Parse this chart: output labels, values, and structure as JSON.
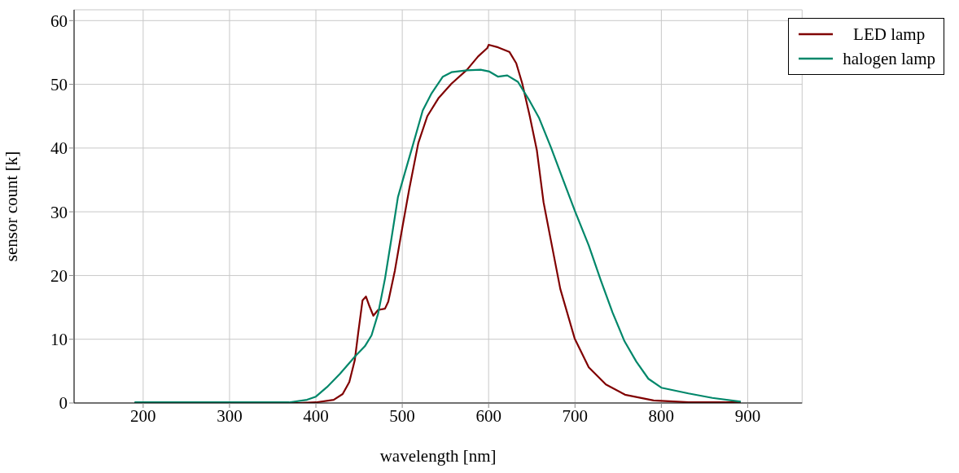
{
  "chart_data": {
    "type": "line",
    "xlabel": "wavelength [nm]",
    "ylabel": "sensor count [k]",
    "xlim": [
      120,
      963
    ],
    "ylim": [
      0,
      61.7
    ],
    "xticks": [
      200,
      300,
      400,
      500,
      600,
      700,
      800,
      900
    ],
    "yticks": [
      0,
      10,
      20,
      30,
      40,
      50,
      60
    ],
    "grid": true,
    "legend": "top right",
    "marker": "none",
    "line_style": "solid",
    "series": [
      {
        "name": "LED lamp",
        "color": "#800000",
        "x": [
          190,
          300,
          380,
          400,
          420.6,
          431,
          438.7,
          445,
          449,
          454,
          458,
          462,
          466.5,
          472,
          480,
          483.8,
          491.5,
          499,
          508,
          518.6,
          529,
          541.8,
          557,
          575,
          588,
          598.5,
          600,
          611,
          624,
          632,
          639,
          647.5,
          655.8,
          663.6,
          672,
          683,
          699.7,
          716,
          735.8,
          757.9,
          791,
          831.7,
          892
        ],
        "values": [
          0,
          0,
          0,
          0.1,
          0.5,
          1.4,
          3.3,
          6.7,
          11,
          16.1,
          16.7,
          15.2,
          13.7,
          14.6,
          14.8,
          15.9,
          20.8,
          26.7,
          33.5,
          40.8,
          45,
          47.8,
          50.1,
          52.3,
          54.4,
          55.7,
          56.2,
          55.8,
          55.1,
          53.3,
          50.1,
          45.1,
          39.7,
          31.5,
          25.6,
          17.9,
          10.1,
          5.6,
          2.9,
          1.3,
          0.4,
          0.1,
          0.1
        ]
      },
      {
        "name": "halogen lamp",
        "color": "#00876a",
        "x": [
          190,
          300,
          369,
          389.7,
          400,
          412.9,
          428,
          446,
          456.7,
          464.4,
          472,
          480,
          487.6,
          495,
          503,
          513,
          523.7,
          534,
          547,
          557,
          575,
          590.7,
          601,
          611,
          621.6,
          633.9,
          647.5,
          658.5,
          672.2,
          686,
          700,
          716,
          730,
          743.5,
          757.3,
          771,
          785,
          800,
          831.4,
          859,
          892
        ],
        "values": [
          0.1,
          0.1,
          0.1,
          0.5,
          1,
          2.5,
          4.6,
          7.4,
          8.9,
          10.6,
          14,
          19.5,
          25.9,
          32.3,
          36.1,
          40.8,
          45.9,
          48.6,
          51.2,
          51.9,
          52.2,
          52.3,
          52,
          51.2,
          51.4,
          50.4,
          47.4,
          44.7,
          40.1,
          35.1,
          30.1,
          24.7,
          19.2,
          14.2,
          9.7,
          6.5,
          3.8,
          2.4,
          1.5,
          0.8,
          0.2
        ]
      }
    ]
  }
}
